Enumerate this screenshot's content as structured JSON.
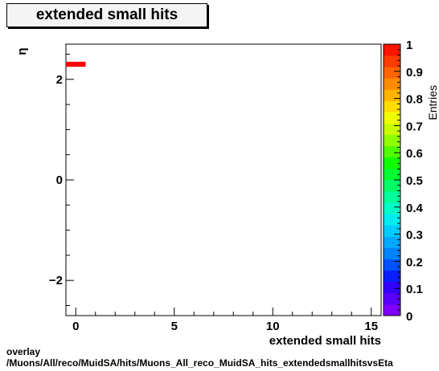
{
  "chart_data": {
    "type": "heatmap",
    "title": "extended small hits",
    "xlabel": "extended small hits",
    "ylabel": "η",
    "zlabel": "Entries",
    "xlim": [
      -0.5,
      15.5
    ],
    "ylim": [
      -2.7,
      2.7
    ],
    "zlim": [
      0,
      1
    ],
    "x_ticks": [
      0,
      5,
      10,
      15
    ],
    "x_tick_labels": [
      "0",
      "5",
      "10",
      "15"
    ],
    "y_ticks": [
      -2,
      0,
      2
    ],
    "y_tick_labels": [
      "−2",
      "0",
      "2"
    ],
    "z_ticks": [
      0,
      0.1,
      0.2,
      0.3,
      0.4,
      0.5,
      0.6,
      0.7,
      0.8,
      0.9,
      1
    ],
    "z_tick_labels": [
      "0",
      "0.1",
      "0.2",
      "0.3",
      "0.4",
      "0.5",
      "0.6",
      "0.7",
      "0.8",
      "0.9",
      "1"
    ],
    "cells": [
      {
        "x0": -0.5,
        "x1": 0.5,
        "y0": 2.25,
        "y1": 2.35,
        "value": 1
      }
    ],
    "palette": [
      "#7f00ff",
      "#5a00ff",
      "#3300ff",
      "#0a1eff",
      "#0052ff",
      "#0084ff",
      "#00a8ff",
      "#00ccff",
      "#00ecf0",
      "#00ffc8",
      "#00ff9a",
      "#00ff66",
      "#00ff33",
      "#10ff00",
      "#50ff00",
      "#90ff00",
      "#c8ff00",
      "#f0ff00",
      "#ffdd00",
      "#ffb400",
      "#ff8c00",
      "#ff6400",
      "#ff3c00",
      "#ff1400"
    ]
  },
  "footer": {
    "line1": "overlay",
    "line2": "/Muons/All/reco/MuidSA/hits/Muons_All_reco_MuidSA_hits_extendedsmallhitsvsEta"
  }
}
